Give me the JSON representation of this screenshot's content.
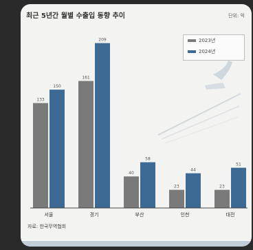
{
  "chart_data": {
    "type": "bar",
    "title": "최근 5년간 월별 수출입 동향 추이",
    "unit": "단위: 억",
    "categories": [
      "서울",
      "경기",
      "부산",
      "인천",
      "대전"
    ],
    "series": [
      {
        "name": "2023년",
        "color": "#7a7a7a",
        "values": [
          133,
          161,
          40,
          23,
          23
        ]
      },
      {
        "name": "2024년",
        "color": "#3d6a94",
        "values": [
          150,
          209,
          58,
          44,
          51
        ]
      }
    ],
    "bar_labels": {
      "2023년": [
        "133",
        "161",
        "40",
        "23",
        "23"
      ],
      "2024년": [
        "150",
        "209",
        "58",
        "44",
        "51"
      ]
    },
    "ylim": [
      0,
      220
    ],
    "grid": false,
    "legend_position": "top-right",
    "source": "자료: 한국무역협회"
  }
}
